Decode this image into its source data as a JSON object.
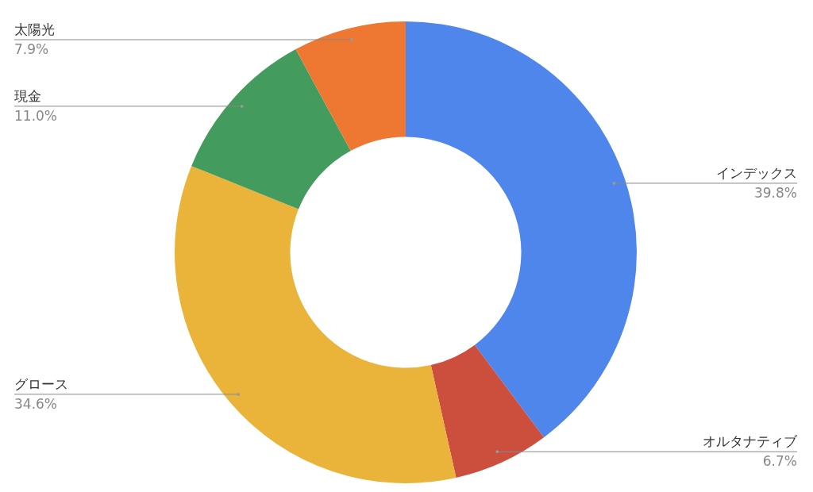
{
  "chart_data": {
    "type": "donut",
    "categories": [
      "インデックス",
      "オルタナティブ",
      "グロース",
      "現金",
      "太陽光"
    ],
    "values": [
      39.8,
      6.7,
      34.6,
      11.0,
      7.9
    ],
    "colors": [
      "#4f86ec",
      "#cc4e3c",
      "#eab43a",
      "#439b5e",
      "#ee7732"
    ],
    "value_labels": [
      "39.8%",
      "6.7%",
      "34.6%",
      "11.0%",
      "7.9%"
    ]
  }
}
